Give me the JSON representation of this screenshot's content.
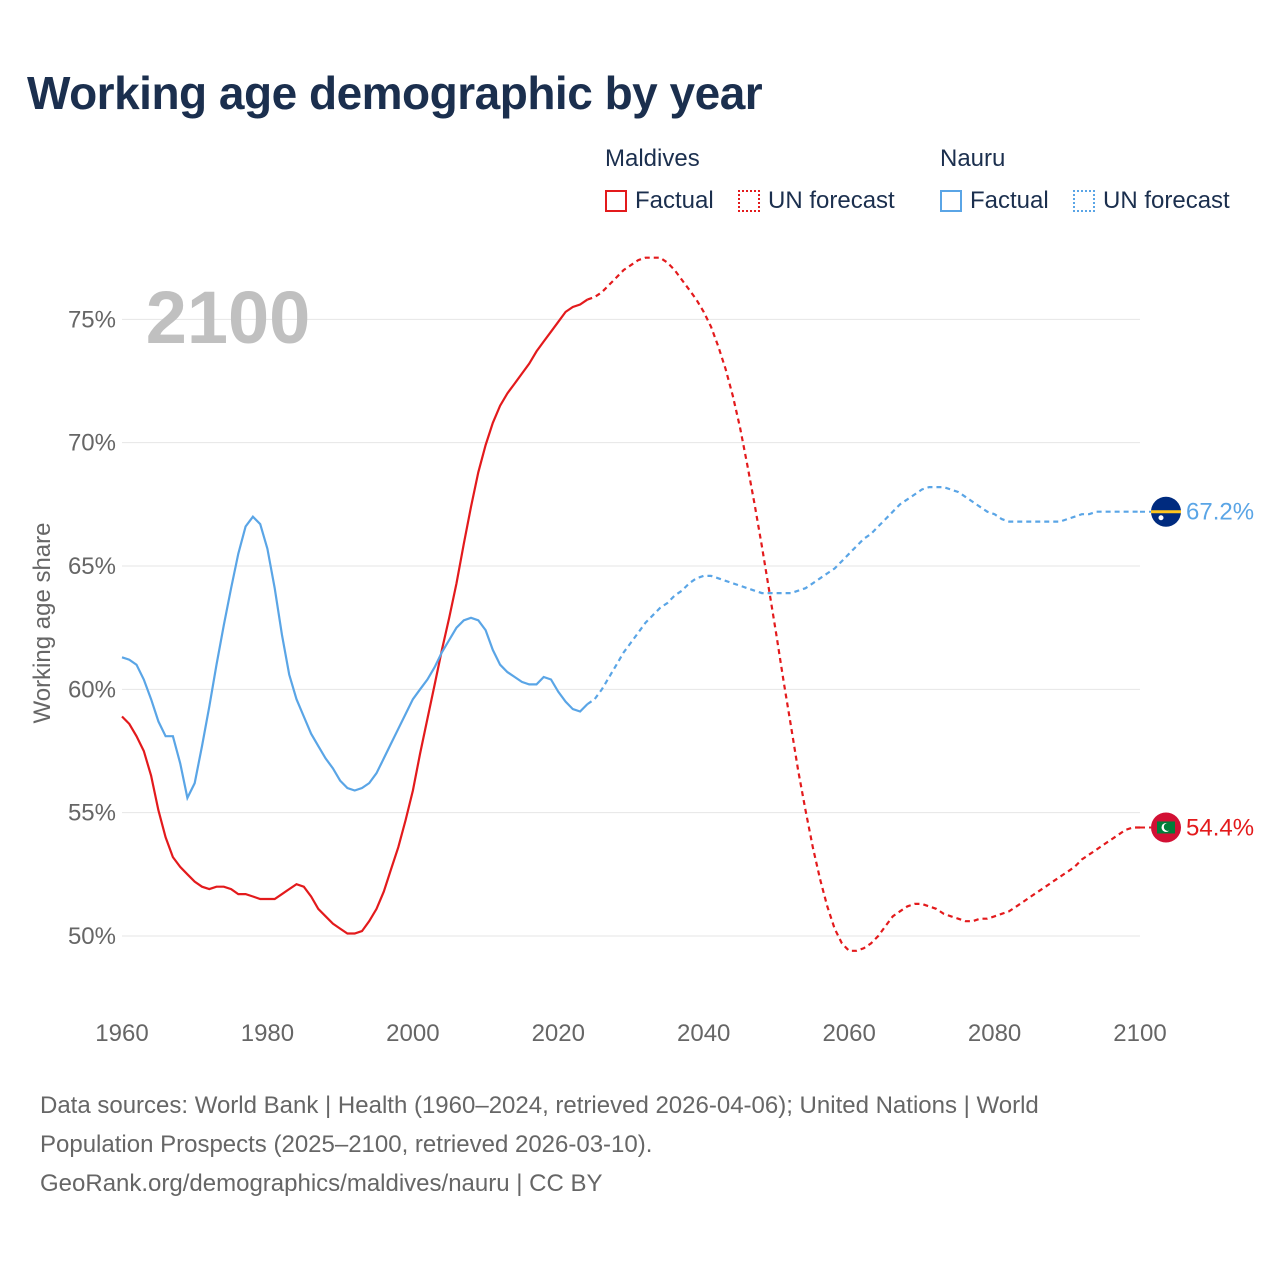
{
  "title": "Working age demographic by year",
  "year_label": "2100",
  "legend": {
    "maldives": {
      "name": "Maldives",
      "factual": "Factual",
      "forecast": "UN forecast"
    },
    "nauru": {
      "name": "Nauru",
      "factual": "Factual",
      "forecast": "UN forecast"
    }
  },
  "colors": {
    "maldives": "#e31a1c",
    "nauru": "#5aa5e6",
    "grid": "#e6e6e6",
    "axis_text": "#666666",
    "year_watermark": "#c0c0c0"
  },
  "footer": {
    "line1": "Data sources: World Bank | Health (1960–2024, retrieved 2026-04-06); United Nations | World",
    "line2": "Population Prospects (2025–2100, retrieved 2026-03-10).",
    "line3": "GeoRank.org/demographics/maldives/nauru | CC BY"
  },
  "chart_data": {
    "type": "line",
    "title": "Working age demographic by year",
    "xlabel": "",
    "ylabel": "Working age share",
    "xlim": [
      1960,
      2100
    ],
    "ylim": [
      47,
      78.5
    ],
    "x_ticks": [
      1960,
      1980,
      2000,
      2020,
      2040,
      2060,
      2080,
      2100
    ],
    "y_ticks": [
      50,
      55,
      60,
      65,
      70,
      75
    ],
    "y_tick_labels": [
      "50%",
      "55%",
      "60%",
      "65%",
      "70%",
      "75%"
    ],
    "series": [
      {
        "name": "Maldives",
        "end_label": "54.4%",
        "end_value": 54.4,
        "factual": [
          [
            1960,
            58.9
          ],
          [
            1961,
            58.6
          ],
          [
            1962,
            58.1
          ],
          [
            1963,
            57.5
          ],
          [
            1964,
            56.5
          ],
          [
            1965,
            55.1
          ],
          [
            1966,
            54.0
          ],
          [
            1967,
            53.2
          ],
          [
            1968,
            52.8
          ],
          [
            1969,
            52.5
          ],
          [
            1970,
            52.2
          ],
          [
            1971,
            52.0
          ],
          [
            1972,
            51.9
          ],
          [
            1973,
            52.0
          ],
          [
            1974,
            52.0
          ],
          [
            1975,
            51.9
          ],
          [
            1976,
            51.7
          ],
          [
            1977,
            51.7
          ],
          [
            1978,
            51.6
          ],
          [
            1979,
            51.5
          ],
          [
            1980,
            51.5
          ],
          [
            1981,
            51.5
          ],
          [
            1982,
            51.7
          ],
          [
            1983,
            51.9
          ],
          [
            1984,
            52.1
          ],
          [
            1985,
            52.0
          ],
          [
            1986,
            51.6
          ],
          [
            1987,
            51.1
          ],
          [
            1988,
            50.8
          ],
          [
            1989,
            50.5
          ],
          [
            1990,
            50.3
          ],
          [
            1991,
            50.1
          ],
          [
            1992,
            50.1
          ],
          [
            1993,
            50.2
          ],
          [
            1994,
            50.6
          ],
          [
            1995,
            51.1
          ],
          [
            1996,
            51.8
          ],
          [
            1997,
            52.7
          ],
          [
            1998,
            53.6
          ],
          [
            1999,
            54.7
          ],
          [
            2000,
            55.9
          ],
          [
            2001,
            57.4
          ],
          [
            2002,
            58.8
          ],
          [
            2003,
            60.2
          ],
          [
            2004,
            61.6
          ],
          [
            2005,
            62.9
          ],
          [
            2006,
            64.3
          ],
          [
            2007,
            65.9
          ],
          [
            2008,
            67.4
          ],
          [
            2009,
            68.8
          ],
          [
            2010,
            69.9
          ],
          [
            2011,
            70.8
          ],
          [
            2012,
            71.5
          ],
          [
            2013,
            72.0
          ],
          [
            2014,
            72.4
          ],
          [
            2015,
            72.8
          ],
          [
            2016,
            73.2
          ],
          [
            2017,
            73.7
          ],
          [
            2018,
            74.1
          ],
          [
            2019,
            74.5
          ],
          [
            2020,
            74.9
          ],
          [
            2021,
            75.3
          ],
          [
            2022,
            75.5
          ],
          [
            2023,
            75.6
          ],
          [
            2024,
            75.8
          ]
        ],
        "forecast": [
          [
            2024,
            75.8
          ],
          [
            2025,
            75.9
          ],
          [
            2026,
            76.1
          ],
          [
            2027,
            76.4
          ],
          [
            2028,
            76.7
          ],
          [
            2029,
            77.0
          ],
          [
            2030,
            77.2
          ],
          [
            2031,
            77.4
          ],
          [
            2032,
            77.5
          ],
          [
            2033,
            77.5
          ],
          [
            2034,
            77.5
          ],
          [
            2035,
            77.3
          ],
          [
            2036,
            77.0
          ],
          [
            2037,
            76.6
          ],
          [
            2038,
            76.2
          ],
          [
            2039,
            75.8
          ],
          [
            2040,
            75.3
          ],
          [
            2041,
            74.7
          ],
          [
            2042,
            73.9
          ],
          [
            2043,
            73.0
          ],
          [
            2044,
            71.9
          ],
          [
            2045,
            70.6
          ],
          [
            2046,
            69.1
          ],
          [
            2047,
            67.5
          ],
          [
            2048,
            65.8
          ],
          [
            2049,
            64.0
          ],
          [
            2050,
            62.2
          ],
          [
            2051,
            60.3
          ],
          [
            2052,
            58.5
          ],
          [
            2053,
            56.7
          ],
          [
            2054,
            55.1
          ],
          [
            2055,
            53.6
          ],
          [
            2056,
            52.3
          ],
          [
            2057,
            51.2
          ],
          [
            2058,
            50.3
          ],
          [
            2059,
            49.7
          ],
          [
            2060,
            49.4
          ],
          [
            2061,
            49.4
          ],
          [
            2062,
            49.5
          ],
          [
            2063,
            49.7
          ],
          [
            2064,
            50.0
          ],
          [
            2065,
            50.4
          ],
          [
            2066,
            50.8
          ],
          [
            2067,
            51.0
          ],
          [
            2068,
            51.2
          ],
          [
            2069,
            51.3
          ],
          [
            2070,
            51.3
          ],
          [
            2071,
            51.2
          ],
          [
            2072,
            51.1
          ],
          [
            2073,
            50.9
          ],
          [
            2074,
            50.8
          ],
          [
            2075,
            50.7
          ],
          [
            2076,
            50.6
          ],
          [
            2077,
            50.6
          ],
          [
            2078,
            50.7
          ],
          [
            2079,
            50.7
          ],
          [
            2080,
            50.8
          ],
          [
            2081,
            50.9
          ],
          [
            2082,
            51.0
          ],
          [
            2083,
            51.2
          ],
          [
            2084,
            51.4
          ],
          [
            2085,
            51.6
          ],
          [
            2086,
            51.8
          ],
          [
            2087,
            52.0
          ],
          [
            2088,
            52.2
          ],
          [
            2089,
            52.4
          ],
          [
            2090,
            52.6
          ],
          [
            2091,
            52.8
          ],
          [
            2092,
            53.1
          ],
          [
            2093,
            53.3
          ],
          [
            2094,
            53.5
          ],
          [
            2095,
            53.7
          ],
          [
            2096,
            53.9
          ],
          [
            2097,
            54.1
          ],
          [
            2098,
            54.3
          ],
          [
            2099,
            54.4
          ],
          [
            2100,
            54.4
          ]
        ]
      },
      {
        "name": "Nauru",
        "end_label": "67.2%",
        "end_value": 67.2,
        "factual": [
          [
            1960,
            61.3
          ],
          [
            1961,
            61.2
          ],
          [
            1962,
            61.0
          ],
          [
            1963,
            60.4
          ],
          [
            1964,
            59.6
          ],
          [
            1965,
            58.7
          ],
          [
            1966,
            58.1
          ],
          [
            1967,
            58.1
          ],
          [
            1968,
            57.0
          ],
          [
            1969,
            55.6
          ],
          [
            1970,
            56.2
          ],
          [
            1971,
            57.7
          ],
          [
            1972,
            59.3
          ],
          [
            1973,
            61.0
          ],
          [
            1974,
            62.6
          ],
          [
            1975,
            64.1
          ],
          [
            1976,
            65.5
          ],
          [
            1977,
            66.6
          ],
          [
            1978,
            67.0
          ],
          [
            1979,
            66.7
          ],
          [
            1980,
            65.7
          ],
          [
            1981,
            64.1
          ],
          [
            1982,
            62.2
          ],
          [
            1983,
            60.6
          ],
          [
            1984,
            59.6
          ],
          [
            1985,
            58.9
          ],
          [
            1986,
            58.2
          ],
          [
            1987,
            57.7
          ],
          [
            1988,
            57.2
          ],
          [
            1989,
            56.8
          ],
          [
            1990,
            56.3
          ],
          [
            1991,
            56.0
          ],
          [
            1992,
            55.9
          ],
          [
            1993,
            56.0
          ],
          [
            1994,
            56.2
          ],
          [
            1995,
            56.6
          ],
          [
            1996,
            57.2
          ],
          [
            1997,
            57.8
          ],
          [
            1998,
            58.4
          ],
          [
            1999,
            59.0
          ],
          [
            2000,
            59.6
          ],
          [
            2001,
            60.0
          ],
          [
            2002,
            60.4
          ],
          [
            2003,
            60.9
          ],
          [
            2004,
            61.5
          ],
          [
            2005,
            62.0
          ],
          [
            2006,
            62.5
          ],
          [
            2007,
            62.8
          ],
          [
            2008,
            62.9
          ],
          [
            2009,
            62.8
          ],
          [
            2010,
            62.4
          ],
          [
            2011,
            61.6
          ],
          [
            2012,
            61.0
          ],
          [
            2013,
            60.7
          ],
          [
            2014,
            60.5
          ],
          [
            2015,
            60.3
          ],
          [
            2016,
            60.2
          ],
          [
            2017,
            60.2
          ],
          [
            2018,
            60.5
          ],
          [
            2019,
            60.4
          ],
          [
            2020,
            59.9
          ],
          [
            2021,
            59.5
          ],
          [
            2022,
            59.2
          ],
          [
            2023,
            59.1
          ],
          [
            2024,
            59.4
          ]
        ],
        "forecast": [
          [
            2024,
            59.4
          ],
          [
            2025,
            59.6
          ],
          [
            2026,
            60.0
          ],
          [
            2027,
            60.5
          ],
          [
            2028,
            61.0
          ],
          [
            2029,
            61.5
          ],
          [
            2030,
            61.9
          ],
          [
            2031,
            62.3
          ],
          [
            2032,
            62.7
          ],
          [
            2033,
            63.0
          ],
          [
            2034,
            63.3
          ],
          [
            2035,
            63.5
          ],
          [
            2036,
            63.8
          ],
          [
            2037,
            64.0
          ],
          [
            2038,
            64.3
          ],
          [
            2039,
            64.5
          ],
          [
            2040,
            64.6
          ],
          [
            2041,
            64.6
          ],
          [
            2042,
            64.5
          ],
          [
            2043,
            64.4
          ],
          [
            2044,
            64.3
          ],
          [
            2045,
            64.2
          ],
          [
            2046,
            64.1
          ],
          [
            2047,
            64.0
          ],
          [
            2048,
            63.9
          ],
          [
            2049,
            63.9
          ],
          [
            2050,
            63.9
          ],
          [
            2051,
            63.9
          ],
          [
            2052,
            63.9
          ],
          [
            2053,
            64.0
          ],
          [
            2054,
            64.1
          ],
          [
            2055,
            64.3
          ],
          [
            2056,
            64.5
          ],
          [
            2057,
            64.7
          ],
          [
            2058,
            64.9
          ],
          [
            2059,
            65.2
          ],
          [
            2060,
            65.5
          ],
          [
            2061,
            65.8
          ],
          [
            2062,
            66.1
          ],
          [
            2063,
            66.3
          ],
          [
            2064,
            66.6
          ],
          [
            2065,
            66.9
          ],
          [
            2066,
            67.2
          ],
          [
            2067,
            67.5
          ],
          [
            2068,
            67.7
          ],
          [
            2069,
            67.9
          ],
          [
            2070,
            68.1
          ],
          [
            2071,
            68.2
          ],
          [
            2072,
            68.2
          ],
          [
            2073,
            68.2
          ],
          [
            2074,
            68.1
          ],
          [
            2075,
            68.0
          ],
          [
            2076,
            67.8
          ],
          [
            2077,
            67.6
          ],
          [
            2078,
            67.4
          ],
          [
            2079,
            67.2
          ],
          [
            2080,
            67.1
          ],
          [
            2081,
            66.9
          ],
          [
            2082,
            66.8
          ],
          [
            2083,
            66.8
          ],
          [
            2084,
            66.8
          ],
          [
            2085,
            66.8
          ],
          [
            2086,
            66.8
          ],
          [
            2087,
            66.8
          ],
          [
            2088,
            66.8
          ],
          [
            2089,
            66.8
          ],
          [
            2090,
            66.9
          ],
          [
            2091,
            67.0
          ],
          [
            2092,
            67.1
          ],
          [
            2093,
            67.1
          ],
          [
            2094,
            67.2
          ],
          [
            2095,
            67.2
          ],
          [
            2096,
            67.2
          ],
          [
            2097,
            67.2
          ],
          [
            2098,
            67.2
          ],
          [
            2099,
            67.2
          ],
          [
            2100,
            67.2
          ]
        ]
      }
    ]
  }
}
